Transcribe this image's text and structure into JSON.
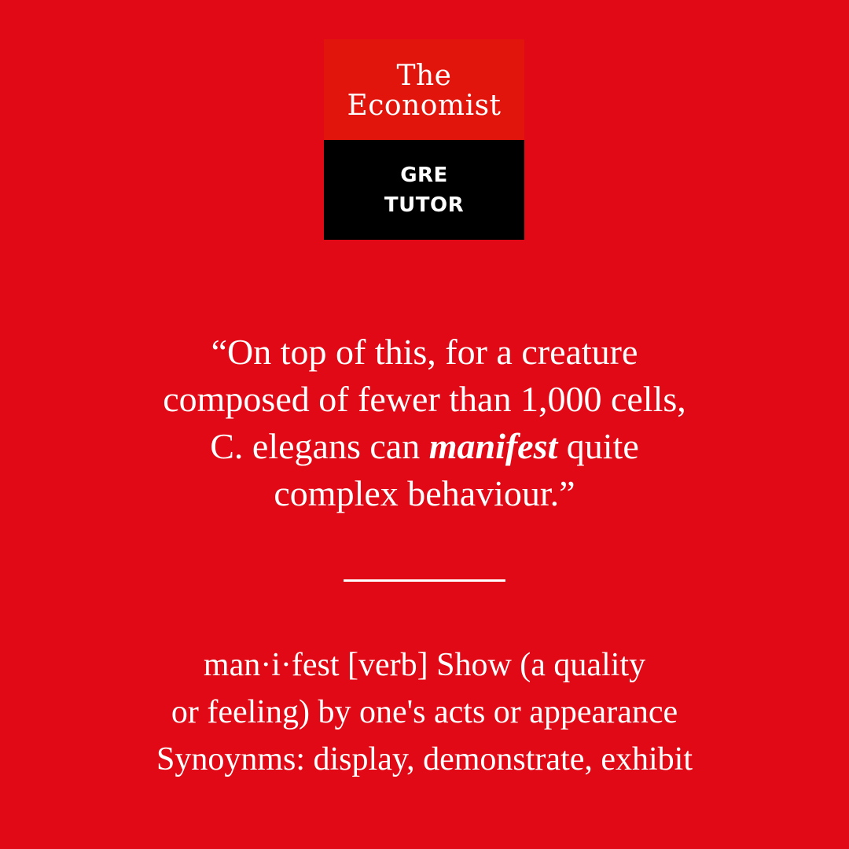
{
  "logo": {
    "brand_line1": "The",
    "brand_line2": "Economist",
    "product_line1": "GRE",
    "product_line2": "TUTOR"
  },
  "quote": {
    "line1": "“On top of this, for a creature",
    "line2": "composed of fewer than 1,000 cells,",
    "line3_before": "C. elegans can ",
    "keyword": "manifest",
    "line3_after": " quite",
    "line4": "complex behaviour.”"
  },
  "definition": {
    "line1": "man·i·fest [verb] Show (a quality",
    "line2": "or feeling) by one's acts or appearance",
    "line3": "Synoynms: display, demonstrate, exhibit"
  },
  "colors": {
    "background": "#e10915",
    "logo_red": "#e2150d",
    "logo_black": "#000000",
    "text": "#ffffff"
  }
}
